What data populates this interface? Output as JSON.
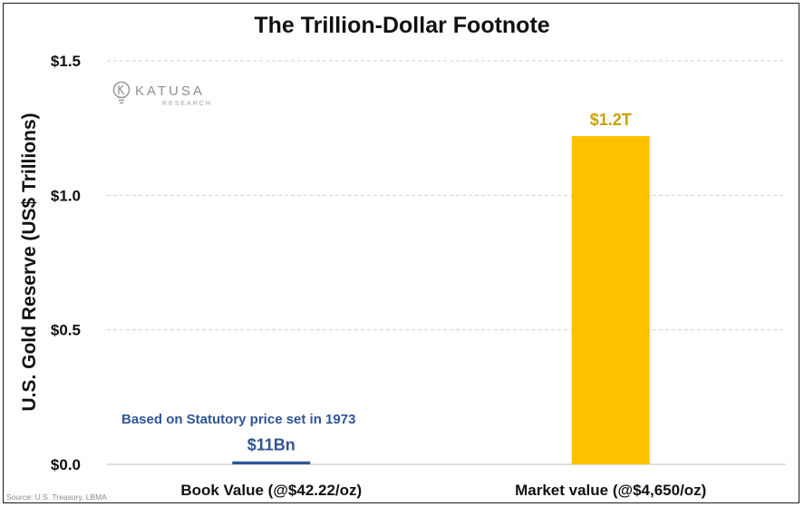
{
  "chart_data": {
    "type": "bar",
    "title": "The Trillion-Dollar Footnote",
    "ylabel": "U.S. Gold Reserve (US$ Trillions)",
    "xlabel": "",
    "ylim": [
      0,
      1.5
    ],
    "yticks": [
      0.0,
      0.5,
      1.0,
      1.5
    ],
    "ytick_labels": [
      "$0.0",
      "$0.5",
      "$1.0",
      "$1.5"
    ],
    "grid": true,
    "categories": [
      "Book Value (@$42.22/oz)",
      "Market value (@$4,650/oz)"
    ],
    "values": [
      0.011,
      1.22
    ],
    "data_labels": [
      "$11Bn",
      "$1.2T"
    ],
    "bar_colors": [
      "#2f5597",
      "#ffc000"
    ],
    "label_colors": [
      "#2f5597",
      "#c9a200"
    ],
    "annotation": "Based on Statutory price set in 1973",
    "source": "Source: U.S. Treasury, LBMA"
  },
  "logo": {
    "word": "KATUSA",
    "sub": "RESEARCH"
  }
}
